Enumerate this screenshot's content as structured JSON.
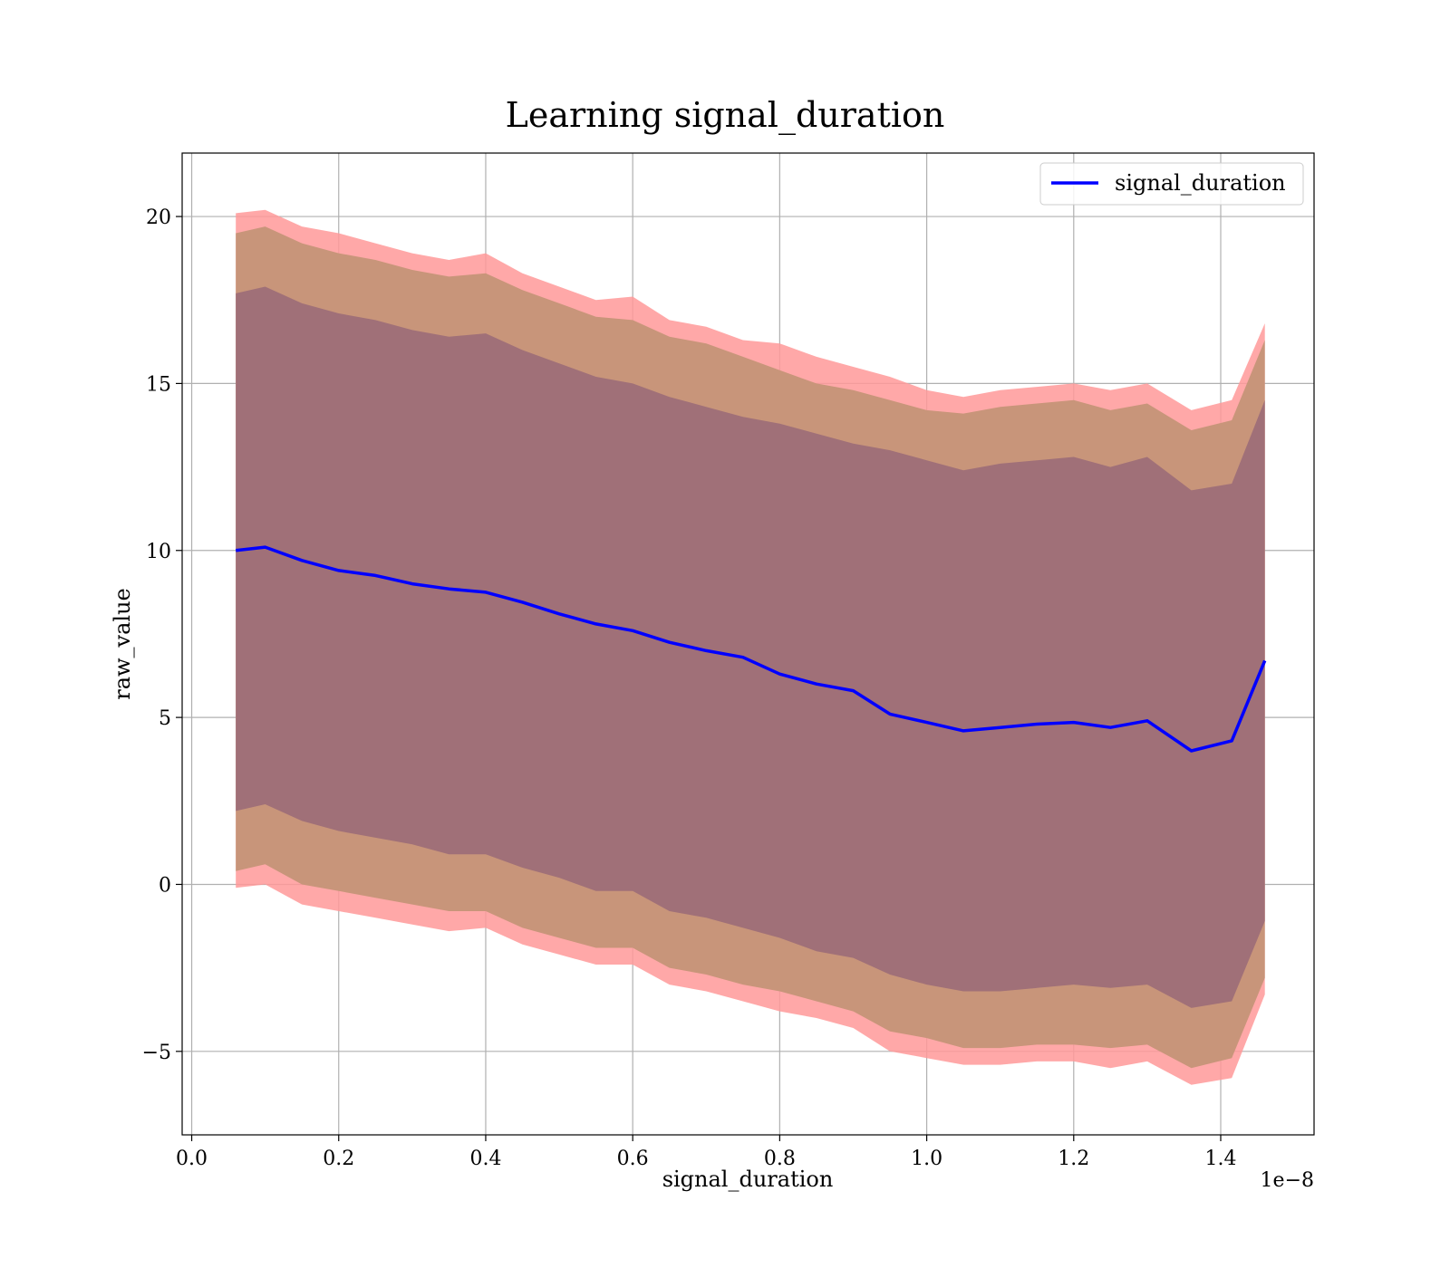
{
  "chart_data": {
    "type": "line",
    "title": "Learning signal_duration",
    "xlabel": "signal_duration",
    "ylabel": "raw_value",
    "x_offset_text": "1e−8",
    "xlim": [
      -0.013,
      1.527
    ],
    "ylim": [
      -7.5,
      21.9
    ],
    "x_ticks": [
      0.0,
      0.2,
      0.4,
      0.6,
      0.8,
      1.0,
      1.2,
      1.4
    ],
    "x_tick_labels": [
      "0.0",
      "0.2",
      "0.4",
      "0.6",
      "0.8",
      "1.0",
      "1.2",
      "1.4"
    ],
    "y_ticks": [
      -5,
      0,
      5,
      10,
      15,
      20
    ],
    "y_tick_labels": [
      "−5",
      "0",
      "5",
      "10",
      "15",
      "20"
    ],
    "grid": true,
    "legend_position": "top-right",
    "colors": {
      "line": "#0000ff",
      "band_outer": "#ff9999",
      "band_middle": "#c8957a",
      "band_inner": "#a07078"
    },
    "series": [
      {
        "name": "signal_duration",
        "role": "mean",
        "x": [
          0.06,
          0.1,
          0.15,
          0.2,
          0.25,
          0.3,
          0.35,
          0.4,
          0.45,
          0.5,
          0.55,
          0.6,
          0.65,
          0.7,
          0.75,
          0.8,
          0.85,
          0.9,
          0.95,
          1.0,
          1.05,
          1.1,
          1.15,
          1.2,
          1.25,
          1.3,
          1.36,
          1.415,
          1.46
        ],
        "y": [
          10.0,
          10.1,
          9.7,
          9.4,
          9.25,
          9.0,
          8.85,
          8.75,
          8.45,
          8.1,
          7.8,
          7.6,
          7.25,
          7.0,
          6.8,
          6.3,
          6.0,
          5.8,
          5.1,
          4.85,
          4.6,
          4.7,
          4.8,
          4.85,
          4.7,
          4.9,
          4.0,
          4.3,
          6.7
        ]
      }
    ],
    "bands": [
      {
        "role": "outer",
        "x": [
          0.06,
          0.1,
          0.15,
          0.2,
          0.25,
          0.3,
          0.35,
          0.4,
          0.45,
          0.5,
          0.55,
          0.6,
          0.65,
          0.7,
          0.75,
          0.8,
          0.85,
          0.9,
          0.95,
          1.0,
          1.05,
          1.1,
          1.15,
          1.2,
          1.25,
          1.3,
          1.36,
          1.415,
          1.46
        ],
        "upper": [
          20.1,
          20.2,
          19.7,
          19.5,
          19.2,
          18.9,
          18.7,
          18.9,
          18.3,
          17.9,
          17.5,
          17.6,
          16.9,
          16.7,
          16.3,
          16.2,
          15.8,
          15.5,
          15.2,
          14.8,
          14.6,
          14.8,
          14.9,
          15.0,
          14.8,
          15.0,
          14.2,
          14.5,
          16.8
        ],
        "lower": [
          -0.1,
          0.0,
          -0.6,
          -0.8,
          -1.0,
          -1.2,
          -1.4,
          -1.3,
          -1.8,
          -2.1,
          -2.4,
          -2.4,
          -3.0,
          -3.2,
          -3.5,
          -3.8,
          -4.0,
          -4.3,
          -5.0,
          -5.2,
          -5.4,
          -5.4,
          -5.3,
          -5.3,
          -5.5,
          -5.3,
          -6.0,
          -5.8,
          -3.3
        ]
      },
      {
        "role": "middle",
        "x": [
          0.06,
          0.1,
          0.15,
          0.2,
          0.25,
          0.3,
          0.35,
          0.4,
          0.45,
          0.5,
          0.55,
          0.6,
          0.65,
          0.7,
          0.75,
          0.8,
          0.85,
          0.9,
          0.95,
          1.0,
          1.05,
          1.1,
          1.15,
          1.2,
          1.25,
          1.3,
          1.36,
          1.415,
          1.46
        ],
        "upper": [
          19.5,
          19.7,
          19.2,
          18.9,
          18.7,
          18.4,
          18.2,
          18.3,
          17.8,
          17.4,
          17.0,
          16.9,
          16.4,
          16.2,
          15.8,
          15.4,
          15.0,
          14.8,
          14.5,
          14.2,
          14.1,
          14.3,
          14.4,
          14.5,
          14.2,
          14.4,
          13.6,
          13.9,
          16.3
        ],
        "lower": [
          0.4,
          0.6,
          0.0,
          -0.2,
          -0.4,
          -0.6,
          -0.8,
          -0.8,
          -1.3,
          -1.6,
          -1.9,
          -1.9,
          -2.5,
          -2.7,
          -3.0,
          -3.2,
          -3.5,
          -3.8,
          -4.4,
          -4.6,
          -4.9,
          -4.9,
          -4.8,
          -4.8,
          -4.9,
          -4.8,
          -5.5,
          -5.2,
          -2.8
        ]
      },
      {
        "role": "inner",
        "x": [
          0.06,
          0.1,
          0.15,
          0.2,
          0.25,
          0.3,
          0.35,
          0.4,
          0.45,
          0.5,
          0.55,
          0.6,
          0.65,
          0.7,
          0.75,
          0.8,
          0.85,
          0.9,
          0.95,
          1.0,
          1.05,
          1.1,
          1.15,
          1.2,
          1.25,
          1.3,
          1.36,
          1.415,
          1.46
        ],
        "upper": [
          17.7,
          17.9,
          17.4,
          17.1,
          16.9,
          16.6,
          16.4,
          16.5,
          16.0,
          15.6,
          15.2,
          15.0,
          14.6,
          14.3,
          14.0,
          13.8,
          13.5,
          13.2,
          13.0,
          12.7,
          12.4,
          12.6,
          12.7,
          12.8,
          12.5,
          12.8,
          11.8,
          12.0,
          14.5
        ],
        "lower": [
          2.2,
          2.4,
          1.9,
          1.6,
          1.4,
          1.2,
          0.9,
          0.9,
          0.5,
          0.2,
          -0.2,
          -0.2,
          -0.8,
          -1.0,
          -1.3,
          -1.6,
          -2.0,
          -2.2,
          -2.7,
          -3.0,
          -3.2,
          -3.2,
          -3.1,
          -3.0,
          -3.1,
          -3.0,
          -3.7,
          -3.5,
          -1.1
        ]
      }
    ]
  }
}
